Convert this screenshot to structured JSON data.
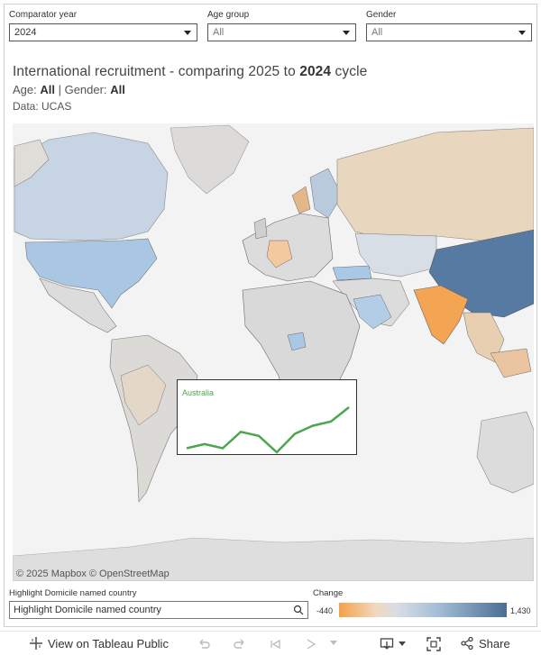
{
  "filters": {
    "comparator_year": {
      "label": "Comparator year",
      "value": "2024"
    },
    "age_group": {
      "label": "Age group",
      "value": "All"
    },
    "gender": {
      "label": "Gender",
      "value": "All"
    }
  },
  "header": {
    "title_prefix": "International recruitment - comparing 2025 to ",
    "title_year": "2024",
    "title_suffix": " cycle",
    "age_label": "Age: ",
    "age_value": "All",
    "separator": " | ",
    "gender_label": "Gender: ",
    "gender_value": "All",
    "source": "Data: UCAS"
  },
  "map": {
    "attribution": "© 2025 Mapbox  © OpenStreetMap",
    "colors": {
      "negative": "#f5a14a",
      "neutral": "#dcdcdc",
      "positive": "#4b6e96",
      "background": "#f3f3f3"
    }
  },
  "tooltip": {
    "country": "Australia",
    "series_color": "#4ca64c",
    "trend": [
      2,
      4,
      2,
      10,
      8,
      0,
      9,
      13,
      15,
      22
    ]
  },
  "search": {
    "label": "Highlight Domicile named country",
    "placeholder": "Highlight Domicile named country",
    "icon": "search-icon"
  },
  "legend": {
    "label": "Change",
    "min": "-440",
    "max": "1,430"
  },
  "bottombar": {
    "view_label": "View on Tableau Public",
    "share_label": "Share"
  }
}
